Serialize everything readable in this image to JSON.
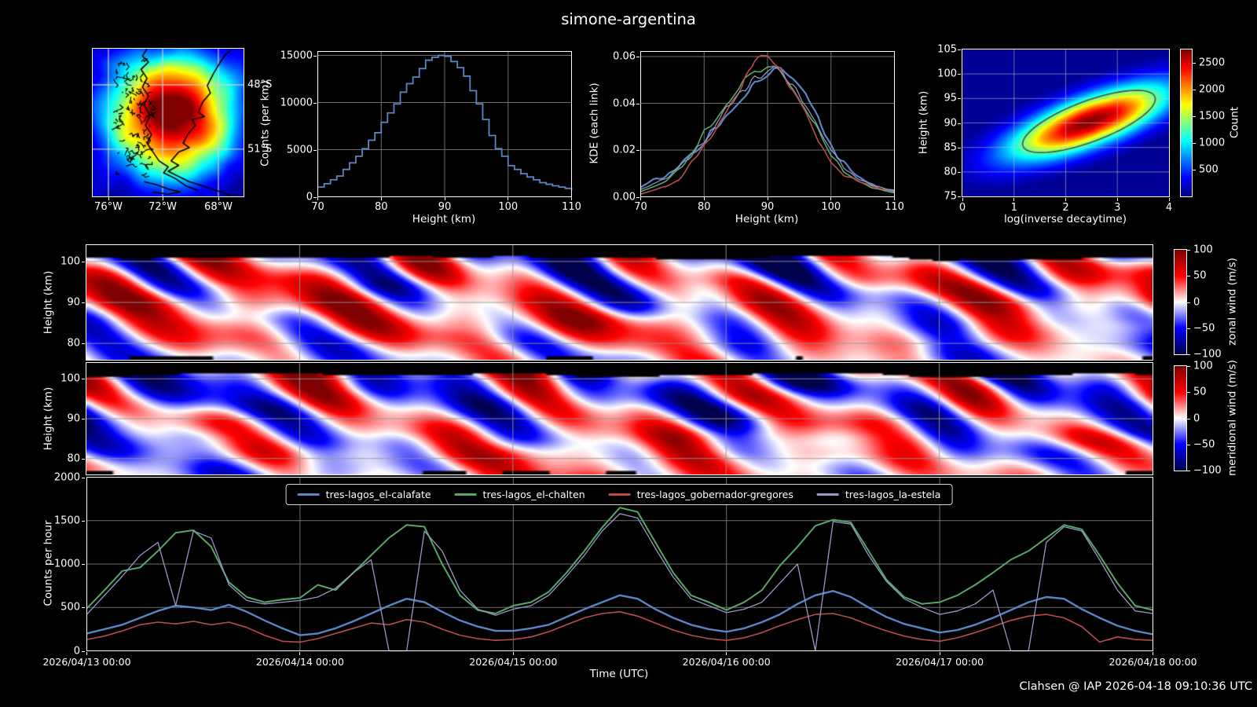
{
  "title": "simone-argentina",
  "footer": "Clahsen @ IAP 2026-04-18 09:10:36 UTC",
  "palette": {
    "background": "#000000",
    "text": "#ffffff",
    "grid": "#6e6e6e",
    "heatmap_grid": "#9a9a9a",
    "spine": "#ffffff",
    "series": {
      "el_calafate": "#5b84c4",
      "el_chalten": "#55a868",
      "gobernador_gregores": "#b94d4d",
      "la_estela": "#9b95c9"
    }
  },
  "chart_data": [
    {
      "id": "meteor_detection_map",
      "type": "heatmap",
      "colormap": "jet",
      "xtick_labels": [
        "76°W",
        "72°W",
        "68°W"
      ],
      "ytick_labels": [
        "48°S",
        "51°S"
      ],
      "note": "meteor count density over Patagonia with coastline overlay"
    },
    {
      "id": "height_histogram",
      "type": "bar",
      "style": "step",
      "xlabel": "Height (km)",
      "ylabel": "Counts (per km)",
      "xlim": [
        70,
        110
      ],
      "ylim": [
        0,
        15420
      ],
      "xticks": [
        70,
        80,
        90,
        100,
        110
      ],
      "yticks": [
        0,
        5000,
        10000,
        15000
      ],
      "ytick_labels": [
        "0",
        "5000",
        "10000",
        "15000"
      ],
      "x_start": 70,
      "x_step": 1,
      "values": [
        1030,
        1390,
        1800,
        2200,
        2900,
        3600,
        4300,
        5100,
        6000,
        6800,
        7900,
        8900,
        9850,
        11100,
        12000,
        12700,
        13600,
        14500,
        14800,
        15000,
        14900,
        14350,
        13700,
        12800,
        11250,
        9850,
        8200,
        6500,
        5100,
        4300,
        3300,
        2900,
        2450,
        2100,
        1800,
        1500,
        1330,
        1170,
        1030,
        890,
        700
      ],
      "color": "#5b84c4"
    },
    {
      "id": "kde_each_link",
      "type": "line",
      "xlabel": "Height (km)",
      "ylabel": "KDE (each link)",
      "xlim": [
        70,
        110
      ],
      "ylim": [
        0,
        0.0622
      ],
      "xticks": [
        70,
        80,
        90,
        100,
        110
      ],
      "yticks": [
        0,
        0.02,
        0.04,
        0.06
      ],
      "ytick_labels": [
        "0.00",
        "0.02",
        "0.04",
        "0.06"
      ],
      "x_start": 70,
      "x_step": 2,
      "series": [
        {
          "name": "blue",
          "color": "#5b84c4",
          "values": [
            0.0039,
            0.0072,
            0.0089,
            0.0128,
            0.0183,
            0.0239,
            0.0306,
            0.0367,
            0.0428,
            0.0483,
            0.0522,
            0.0544,
            0.05,
            0.0439,
            0.0339,
            0.0217,
            0.0144,
            0.0089,
            0.0056,
            0.0033,
            0.0022
          ]
        },
        {
          "name": "green",
          "color": "#55a868",
          "values": [
            0.0022,
            0.0044,
            0.0067,
            0.0117,
            0.0172,
            0.0272,
            0.0328,
            0.0406,
            0.0494,
            0.0533,
            0.055,
            0.0544,
            0.0472,
            0.0383,
            0.0283,
            0.0183,
            0.0106,
            0.0072,
            0.0044,
            0.0028,
            0.0017
          ]
        },
        {
          "name": "red",
          "color": "#b94d4d",
          "values": [
            0.0011,
            0.0028,
            0.0044,
            0.0072,
            0.015,
            0.0217,
            0.0294,
            0.0394,
            0.0483,
            0.0589,
            0.0594,
            0.0539,
            0.0461,
            0.0361,
            0.0239,
            0.015,
            0.0094,
            0.0072,
            0.005,
            0.0033,
            0.0028
          ]
        },
        {
          "name": "purple",
          "color": "#9b95c9",
          "values": [
            0.0033,
            0.0056,
            0.0078,
            0.0122,
            0.0178,
            0.0244,
            0.0317,
            0.0389,
            0.0456,
            0.0506,
            0.0539,
            0.0544,
            0.0483,
            0.0394,
            0.0283,
            0.0194,
            0.0128,
            0.0083,
            0.0056,
            0.0039,
            0.0028
          ]
        }
      ]
    },
    {
      "id": "decaytime_density",
      "type": "heatmap",
      "colormap": "jet",
      "xlabel": "log(inverse decaytime)",
      "ylabel": "Height (km)",
      "xlim": [
        0,
        4
      ],
      "ylim": [
        75,
        105
      ],
      "xticks": [
        0,
        1,
        2,
        3,
        4
      ],
      "xtick_labels": [
        "0",
        "1",
        "2",
        "3",
        "4"
      ],
      "yticks": [
        75,
        80,
        85,
        90,
        95,
        100,
        105
      ],
      "ytick_labels": [
        "75",
        "80",
        "85",
        "90",
        "95",
        "100",
        "105"
      ],
      "peak": {
        "x": 2.45,
        "height_km": 90.3,
        "count": 2750
      },
      "contour_level": 1300,
      "colorbar": {
        "label": "Count",
        "ticks": [
          500,
          1000,
          1500,
          2000,
          2500
        ],
        "tick_labels": [
          "500",
          "1000",
          "1500",
          "2000",
          "2500"
        ],
        "vmax": 2750
      }
    },
    {
      "id": "zonal_wind",
      "type": "heatmap",
      "colormap": "seismic",
      "ylabel": "Height (km)",
      "ylim": [
        76,
        104
      ],
      "yticks": [
        80,
        90,
        100
      ],
      "ytick_labels": [
        "80",
        "90",
        "100"
      ],
      "clim": [
        -100,
        100
      ],
      "colorbar": {
        "label": "zonal wind (m/s)",
        "ticks": [
          100,
          50,
          0,
          -50,
          -100
        ],
        "tick_labels": [
          "100",
          "50",
          "0",
          "−50",
          "−100"
        ]
      }
    },
    {
      "id": "meridional_wind",
      "type": "heatmap",
      "colormap": "seismic",
      "ylabel": "Height (km)",
      "ylim": [
        76,
        104
      ],
      "yticks": [
        80,
        90,
        100
      ],
      "ytick_labels": [
        "80",
        "90",
        "100"
      ],
      "clim": [
        -100,
        100
      ],
      "colorbar": {
        "label": "meridional wind (m/s)",
        "ticks": [
          100,
          50,
          0,
          -50,
          -100
        ],
        "tick_labels": [
          "100",
          "50",
          "0",
          "−50",
          "−100"
        ]
      }
    },
    {
      "id": "counts_per_hour",
      "type": "line",
      "xlabel": "Time (UTC)",
      "ylabel": "Counts per hour",
      "ylim": [
        0,
        2000
      ],
      "yticks": [
        0,
        500,
        1000,
        1500,
        2000
      ],
      "ytick_labels": [
        "0",
        "500",
        "1000",
        "1500",
        "2000"
      ],
      "xtick_labels": [
        "2026/04/13 00:00",
        "2026/04/14 00:00",
        "2026/04/15 00:00",
        "2026/04/16 00:00",
        "2026/04/17 00:00",
        "2026/04/18 00:00"
      ],
      "hours_total": 120,
      "hours_step": 2,
      "series": [
        {
          "name": "tres-lagos_el-calafate",
          "color": "#5b84c4",
          "width": 2.4,
          "values": [
            200,
            250,
            300,
            380,
            460,
            520,
            500,
            470,
            530,
            450,
            350,
            260,
            180,
            200,
            260,
            340,
            430,
            520,
            600,
            560,
            450,
            350,
            280,
            230,
            230,
            260,
            300,
            390,
            480,
            560,
            640,
            600,
            480,
            380,
            300,
            250,
            220,
            260,
            330,
            420,
            540,
            640,
            690,
            620,
            500,
            390,
            310,
            260,
            210,
            240,
            300,
            380,
            470,
            560,
            620,
            600,
            480,
            380,
            290,
            230,
            190
          ]
        },
        {
          "name": "tres-lagos_el-chalten",
          "color": "#55a868",
          "width": 2,
          "values": [
            490,
            700,
            920,
            960,
            1150,
            1360,
            1390,
            1200,
            790,
            620,
            560,
            590,
            610,
            760,
            700,
            900,
            1100,
            1300,
            1450,
            1430,
            1000,
            640,
            470,
            430,
            520,
            560,
            680,
            900,
            1150,
            1420,
            1650,
            1600,
            1250,
            900,
            640,
            560,
            470,
            560,
            700,
            980,
            1200,
            1440,
            1510,
            1480,
            1150,
            820,
            620,
            540,
            560,
            640,
            760,
            900,
            1050,
            1150,
            1300,
            1450,
            1400,
            1100,
            780,
            520,
            470
          ]
        },
        {
          "name": "tres-lagos_gobernador-gregores",
          "color": "#b94d4d",
          "width": 1.6,
          "values": [
            130,
            170,
            230,
            300,
            330,
            310,
            340,
            300,
            330,
            270,
            180,
            110,
            100,
            140,
            200,
            260,
            320,
            300,
            360,
            330,
            250,
            180,
            140,
            120,
            130,
            160,
            220,
            300,
            380,
            430,
            450,
            400,
            320,
            240,
            180,
            140,
            120,
            150,
            210,
            290,
            360,
            420,
            430,
            380,
            300,
            230,
            170,
            130,
            110,
            150,
            210,
            280,
            350,
            400,
            420,
            380,
            280,
            100,
            160,
            130,
            120
          ]
        },
        {
          "name": "tres-lagos_la-estela",
          "color": "#9b95c9",
          "width": 1.3,
          "values": [
            420,
            640,
            860,
            1100,
            1250,
            520,
            1380,
            1300,
            760,
            580,
            540,
            560,
            580,
            620,
            720,
            900,
            1050,
            0,
            0,
            1380,
            1150,
            700,
            480,
            410,
            480,
            520,
            640,
            860,
            1100,
            1380,
            1580,
            1530,
            1180,
            850,
            600,
            520,
            440,
            480,
            560,
            780,
            1000,
            0,
            1490,
            1460,
            1100,
            800,
            600,
            500,
            420,
            460,
            540,
            700,
            0,
            0,
            1250,
            1430,
            1380,
            1050,
            700,
            460,
            430
          ]
        }
      ]
    }
  ]
}
